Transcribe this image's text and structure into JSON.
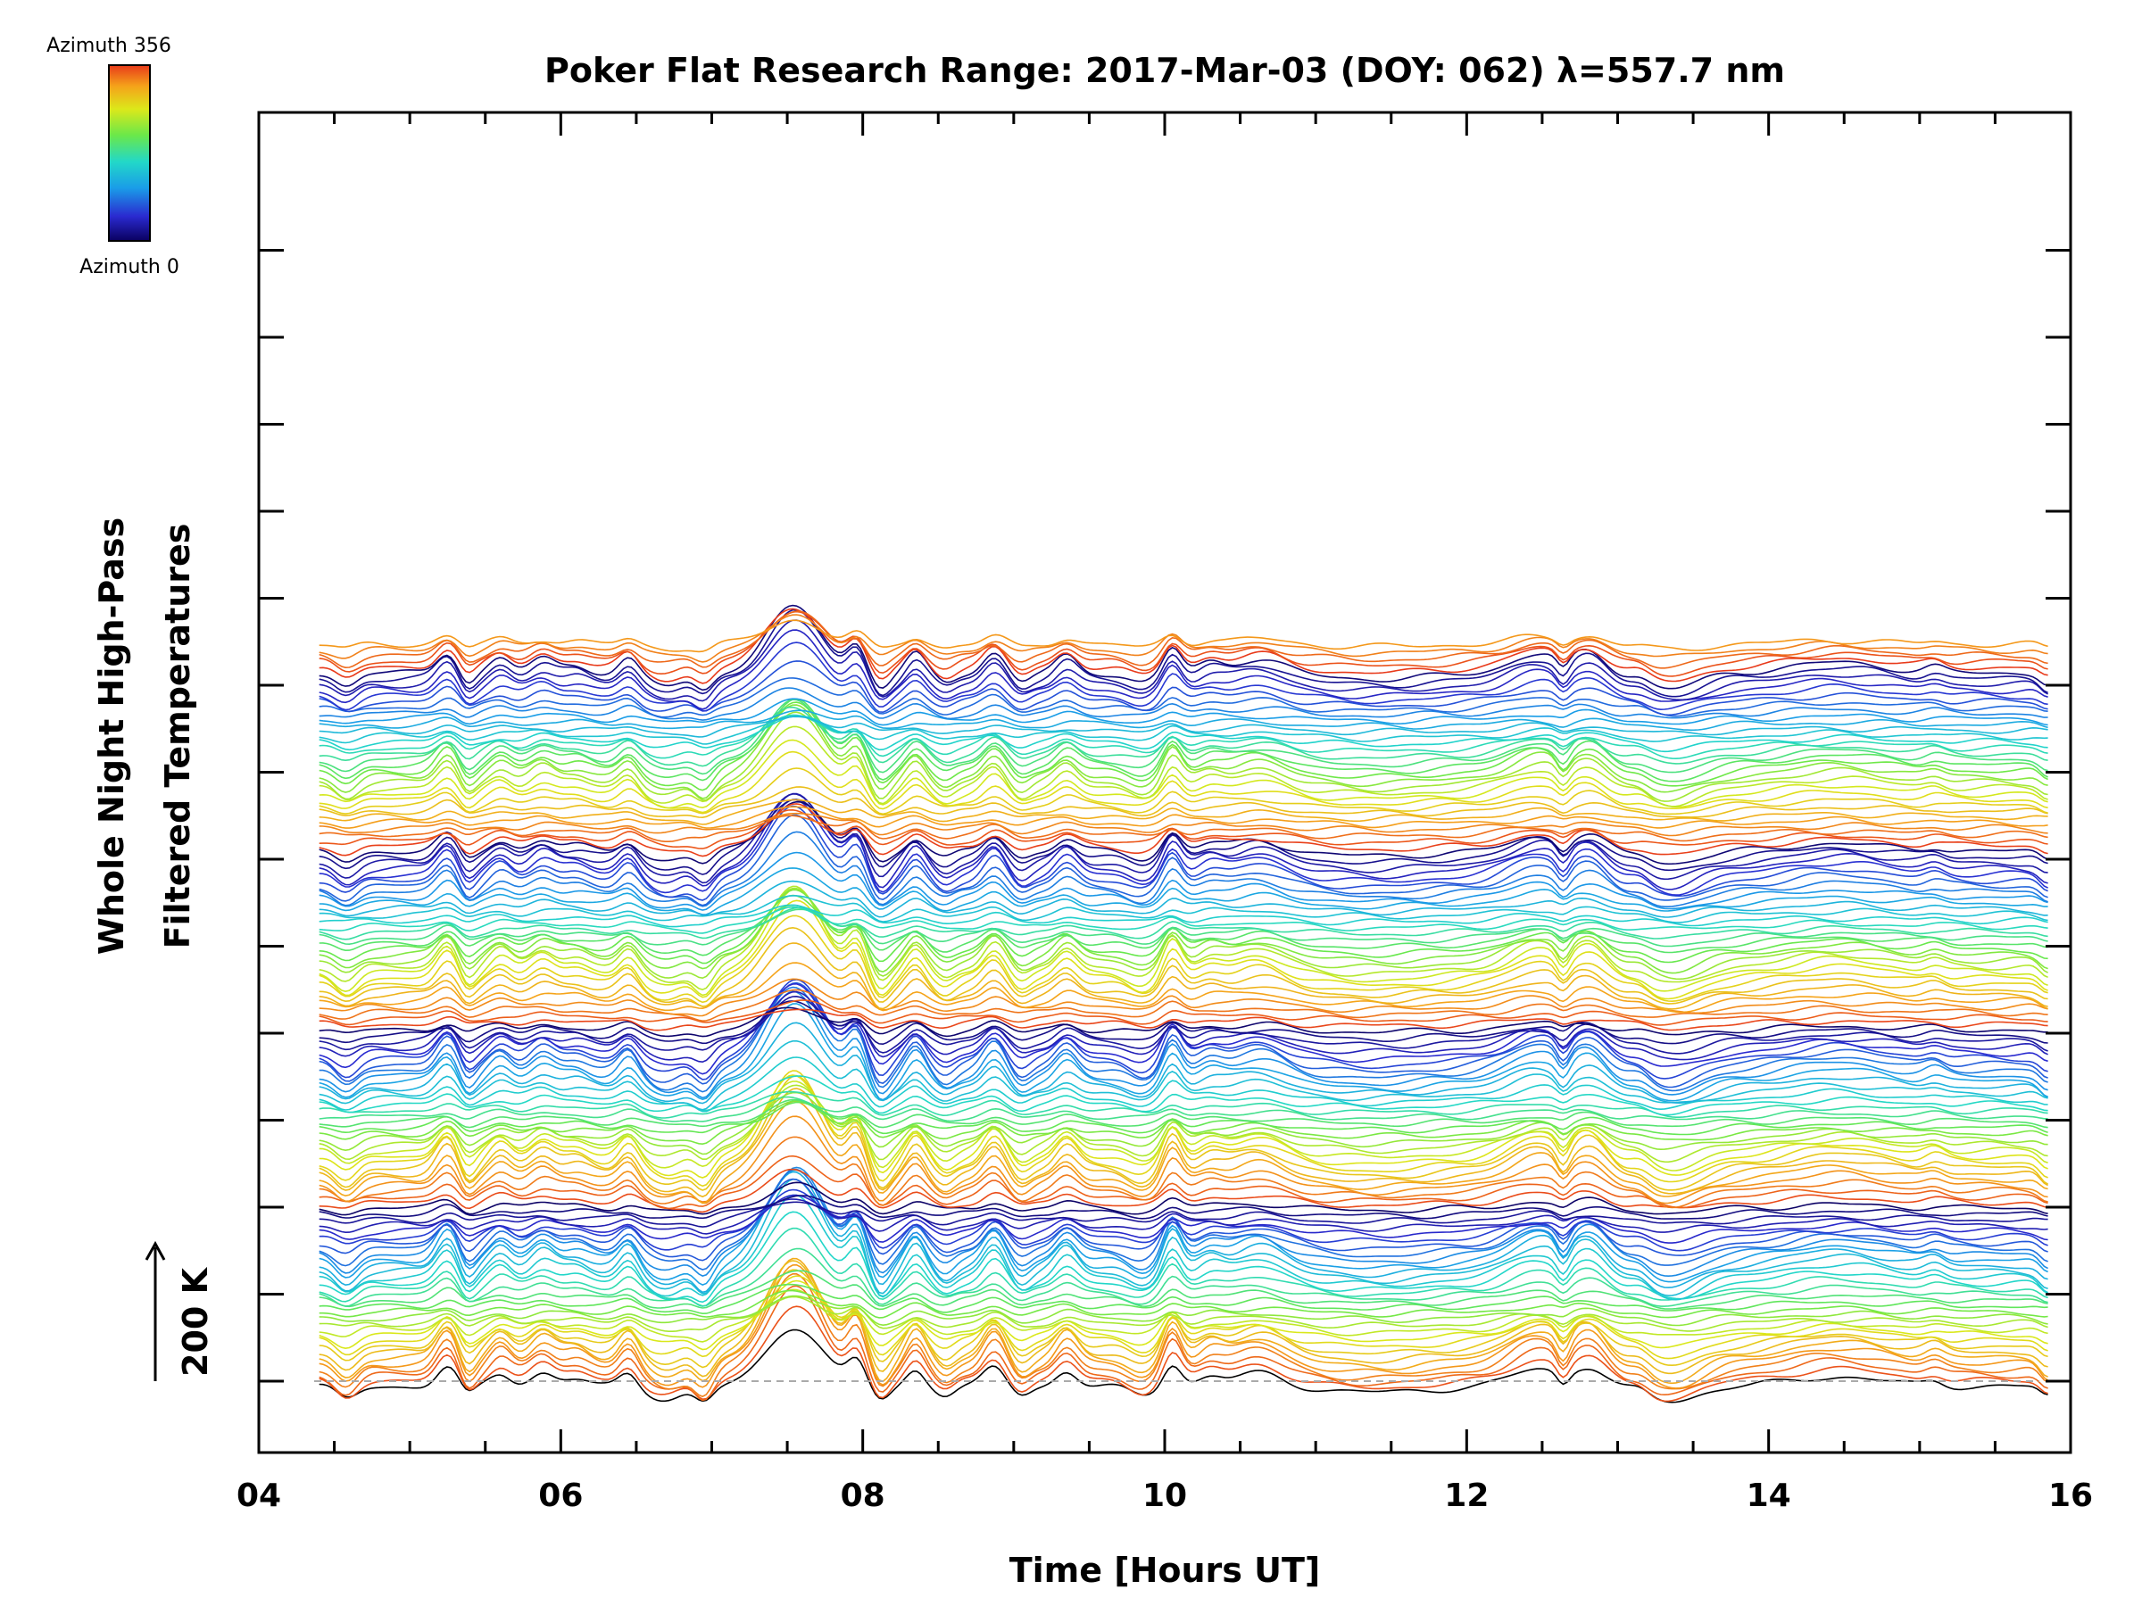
{
  "chart_data": {
    "type": "line",
    "title": "Poker Flat Research Range: 2017-Mar-03 (DOY: 062) λ=557.7 nm",
    "xlabel": "Time [Hours UT]",
    "ylabel_line1": "Whole Night High-Pass",
    "ylabel_line2": "Filtered Temperatures",
    "xlim": [
      4,
      16
    ],
    "x_ticks": [
      "04",
      "06",
      "08",
      "10",
      "12",
      "14",
      "16"
    ],
    "scale_bar_label": "200 K",
    "colorbar": {
      "top_label": "Azimuth 356",
      "bottom_label": "Azimuth 0",
      "colors": [
        "#0a0060",
        "#2a2ad0",
        "#1a9ce8",
        "#22d8c8",
        "#6ae84a",
        "#dce81a",
        "#f5a31a",
        "#e83a1a"
      ]
    },
    "grid": false,
    "n_traces": 130,
    "time_span": [
      4.4,
      15.85
    ],
    "series_description_values": {
      "peak_times_hours": [
        5.25,
        5.6,
        5.85,
        6.45,
        7.55,
        7.95,
        8.35,
        8.85,
        9.35,
        10.05,
        10.6,
        12.5,
        12.8
      ],
      "trough_times_hours": [
        4.6,
        5.4,
        6.65,
        6.95,
        8.1,
        8.55,
        9.0,
        9.85,
        12.65,
        13.3
      ]
    }
  }
}
